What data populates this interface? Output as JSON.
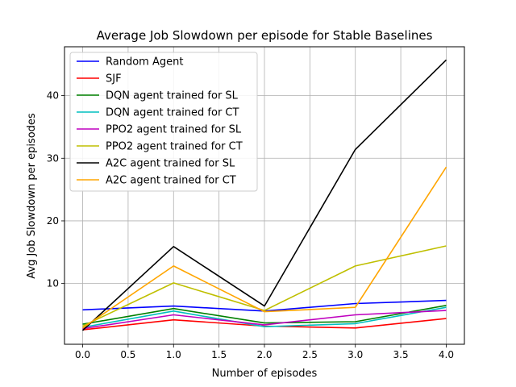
{
  "chart_data": {
    "type": "line",
    "title": "Average Job Slowdown per episode for Stable Baselines",
    "xlabel": "Number of episodes",
    "ylabel": "Avg Job Slowdown per episodes",
    "x": [
      0,
      1,
      2,
      3,
      4
    ],
    "xlim": [
      -0.2,
      4.2
    ],
    "ylim": [
      0.3,
      47.8
    ],
    "xticks": [
      0.0,
      0.5,
      1.0,
      1.5,
      2.0,
      2.5,
      3.0,
      3.5,
      4.0
    ],
    "xtick_labels": [
      "0.0",
      "0.5",
      "1.0",
      "1.5",
      "2.0",
      "2.5",
      "3.0",
      "3.5",
      "4.0"
    ],
    "yticks": [
      10,
      20,
      30,
      40
    ],
    "ytick_labels": [
      "10",
      "20",
      "30",
      "40"
    ],
    "grid": true,
    "legend_position": "top-left",
    "series": [
      {
        "name": "Random Agent",
        "color": "#0000ff",
        "values": [
          5.8,
          6.4,
          5.6,
          6.8,
          7.3
        ]
      },
      {
        "name": "SJF",
        "color": "#ff0000",
        "values": [
          2.6,
          4.2,
          3.2,
          2.9,
          4.4
        ]
      },
      {
        "name": "DQN agent trained for SL",
        "color": "#008000",
        "values": [
          3.5,
          6.0,
          3.7,
          3.9,
          6.5
        ]
      },
      {
        "name": "DQN agent trained for CT",
        "color": "#00bfbf",
        "values": [
          3.0,
          5.6,
          3.1,
          3.6,
          6.2
        ]
      },
      {
        "name": "PPO2 agent trained for SL",
        "color": "#bf00bf",
        "values": [
          2.8,
          5.0,
          3.4,
          5.0,
          5.7
        ]
      },
      {
        "name": "PPO2 agent trained for CT",
        "color": "#bfbf00",
        "values": [
          3.2,
          10.1,
          5.7,
          12.8,
          16.0
        ]
      },
      {
        "name": "A2C agent trained for SL",
        "color": "#000000",
        "values": [
          2.5,
          15.9,
          6.4,
          31.4,
          45.7
        ]
      },
      {
        "name": "A2C agent trained for CT",
        "color": "#ffa500",
        "values": [
          2.9,
          12.8,
          5.5,
          6.2,
          28.6
        ]
      }
    ]
  }
}
